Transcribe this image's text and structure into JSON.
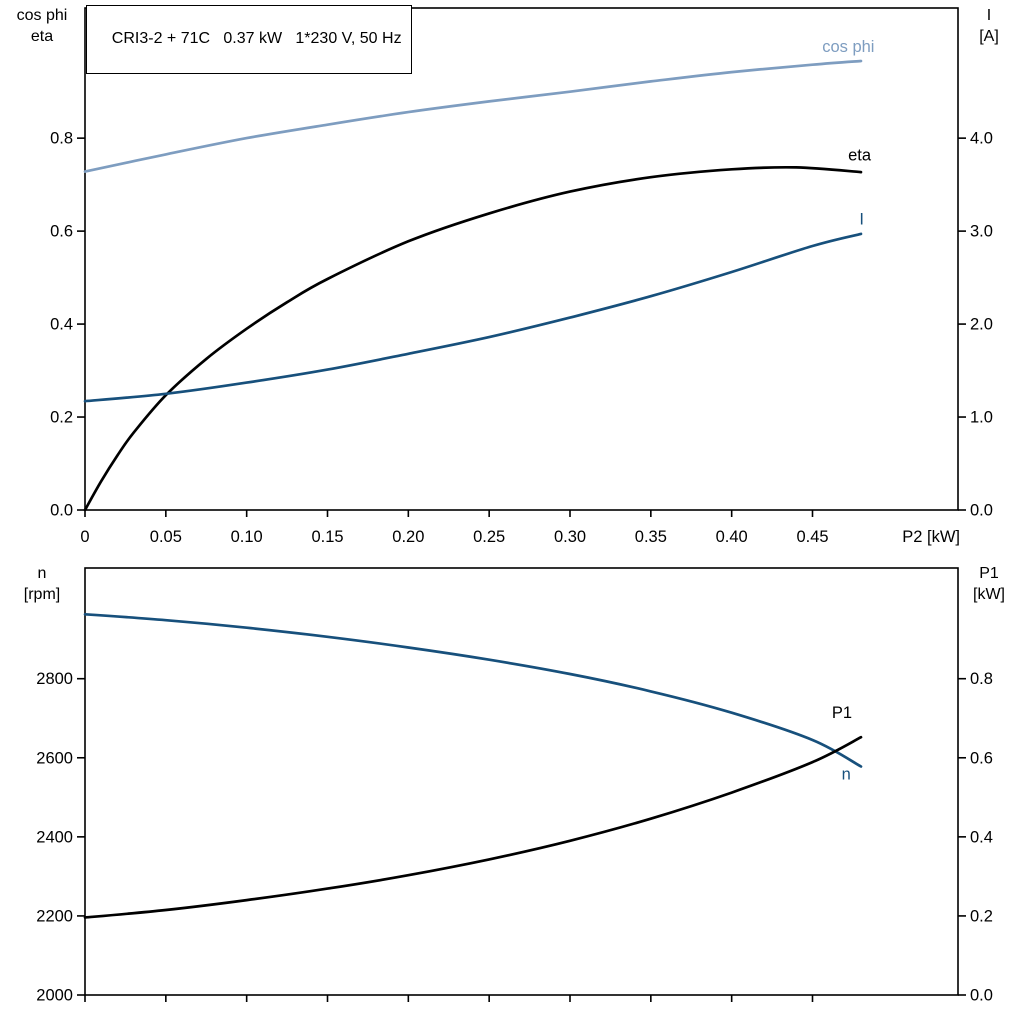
{
  "title_box": "CRI3-2 + 71C   0.37 kW   1*230 V, 50 Hz",
  "colors": {
    "light_blue": "#7e9dc0",
    "dark_blue": "#17507c",
    "black": "#000000"
  },
  "chart_data": [
    {
      "type": "line",
      "name": "electrical-performance",
      "x_axis": {
        "label": "P2 [kW]",
        "min": 0,
        "max": 0.54,
        "ticks": [
          0,
          0.05,
          0.1,
          0.15,
          0.2,
          0.25,
          0.3,
          0.35,
          0.4,
          0.45
        ],
        "tick_labels": [
          "0",
          "0.05",
          "0.10",
          "0.15",
          "0.20",
          "0.25",
          "0.30",
          "0.35",
          "0.40",
          "0.45"
        ]
      },
      "left_axis": {
        "title_lines": [
          "cos phi",
          "eta"
        ],
        "min": 0,
        "max": 1.08,
        "ticks": [
          0,
          0.2,
          0.4,
          0.6,
          0.8
        ],
        "tick_labels": [
          "0.0",
          "0.2",
          "0.4",
          "0.6",
          "0.8"
        ]
      },
      "right_axis": {
        "title_lines": [
          "I",
          "[A]"
        ],
        "min": 0,
        "max": 5.4,
        "ticks": [
          0,
          1,
          2,
          3,
          4
        ],
        "tick_labels": [
          "0.0",
          "1.0",
          "2.0",
          "3.0",
          "4.0"
        ]
      },
      "series": [
        {
          "name": "cos-phi",
          "label": "cos phi",
          "axis": "left",
          "color": "light_blue",
          "label_at": [
            0.456,
            0.985
          ],
          "x": [
            0,
            0.05,
            0.1,
            0.15,
            0.2,
            0.25,
            0.3,
            0.35,
            0.4,
            0.45,
            0.48
          ],
          "y": [
            0.728,
            0.765,
            0.8,
            0.829,
            0.856,
            0.879,
            0.9,
            0.922,
            0.942,
            0.958,
            0.966
          ]
        },
        {
          "name": "eta",
          "label": "eta",
          "axis": "left",
          "color": "black",
          "label_at": [
            0.472,
            0.752
          ],
          "x": [
            0,
            0.01,
            0.02,
            0.03,
            0.05,
            0.075,
            0.1,
            0.125,
            0.15,
            0.2,
            0.25,
            0.3,
            0.35,
            0.4,
            0.44,
            0.48
          ],
          "y": [
            0,
            0.062,
            0.117,
            0.166,
            0.247,
            0.325,
            0.39,
            0.447,
            0.497,
            0.578,
            0.638,
            0.685,
            0.716,
            0.733,
            0.737,
            0.727
          ]
        },
        {
          "name": "current",
          "label": "I",
          "axis": "right",
          "color": "dark_blue",
          "label_at": [
            0.479,
            3.07
          ],
          "x": [
            0,
            0.05,
            0.1,
            0.15,
            0.2,
            0.25,
            0.3,
            0.35,
            0.4,
            0.45,
            0.48
          ],
          "y": [
            1.17,
            1.25,
            1.37,
            1.51,
            1.68,
            1.86,
            2.07,
            2.3,
            2.56,
            2.84,
            2.97
          ]
        }
      ]
    },
    {
      "type": "line",
      "name": "speed-and-input-power",
      "x_axis": {
        "label": "",
        "min": 0,
        "max": 0.54,
        "ticks": [
          0,
          0.05,
          0.1,
          0.15,
          0.2,
          0.25,
          0.3,
          0.35,
          0.4,
          0.45
        ],
        "tick_labels": null
      },
      "left_axis": {
        "title_lines": [
          "n",
          "[rpm]"
        ],
        "min": 2000,
        "max": 3080,
        "ticks": [
          2000,
          2200,
          2400,
          2600,
          2800
        ],
        "tick_labels": [
          "2000",
          "2200",
          "2400",
          "2600",
          "2800"
        ]
      },
      "right_axis": {
        "title_lines": [
          "P1",
          "[kW]"
        ],
        "min": 0,
        "max": 1.08,
        "ticks": [
          0,
          0.2,
          0.4,
          0.6,
          0.8
        ],
        "tick_labels": [
          "0.0",
          "0.2",
          "0.4",
          "0.6",
          "0.8"
        ]
      },
      "series": [
        {
          "name": "speed",
          "label": "n",
          "axis": "left",
          "color": "dark_blue",
          "label_at": [
            0.468,
            2545
          ],
          "x": [
            0,
            0.05,
            0.1,
            0.15,
            0.2,
            0.25,
            0.3,
            0.35,
            0.4,
            0.45,
            0.48
          ],
          "y": [
            2963,
            2948,
            2929,
            2906,
            2879,
            2848,
            2812,
            2768,
            2714,
            2645,
            2578
          ]
        },
        {
          "name": "input-power",
          "label": "P1",
          "axis": "right",
          "color": "black",
          "label_at": [
            0.462,
            0.7
          ],
          "x": [
            0,
            0.05,
            0.1,
            0.15,
            0.2,
            0.25,
            0.3,
            0.35,
            0.4,
            0.45,
            0.48
          ],
          "y": [
            0.196,
            0.215,
            0.24,
            0.269,
            0.303,
            0.343,
            0.39,
            0.446,
            0.512,
            0.589,
            0.652
          ]
        }
      ]
    }
  ]
}
